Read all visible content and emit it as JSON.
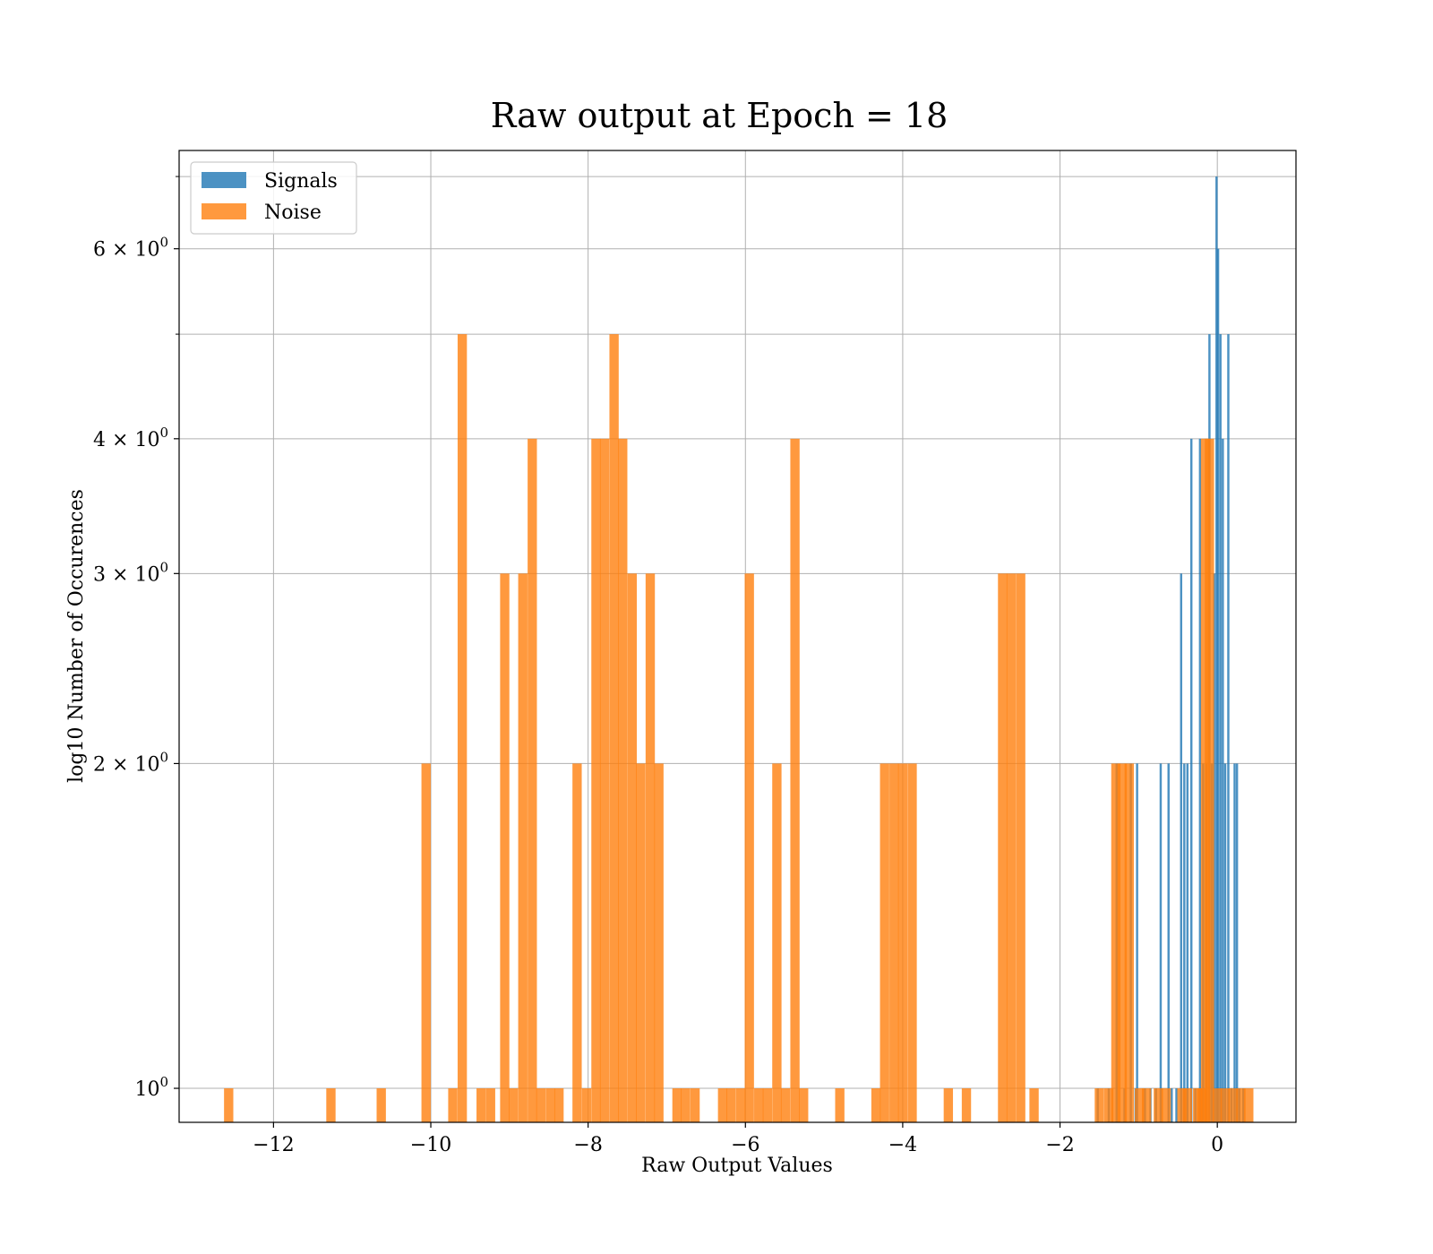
{
  "chart_data": {
    "type": "bar",
    "title": "Raw output at Epoch = 18",
    "xlabel": "Raw Output Values",
    "ylabel": "log10 Number of Occurences",
    "yscale": "log",
    "xlim": [
      -13.2,
      1.0
    ],
    "ylim": [
      0.93,
      7.4
    ],
    "xticks": [
      {
        "value": -12,
        "label": "−12"
      },
      {
        "value": -10,
        "label": "−10"
      },
      {
        "value": -8,
        "label": "−8"
      },
      {
        "value": -6,
        "label": "−6"
      },
      {
        "value": -4,
        "label": "−4"
      },
      {
        "value": -2,
        "label": "−2"
      },
      {
        "value": 0,
        "label": "0"
      }
    ],
    "yticks": [
      {
        "value": 1,
        "base": "10",
        "exp": "0"
      },
      {
        "value": 2,
        "base": "2 × 10",
        "exp": "0"
      },
      {
        "value": 3,
        "base": "3 × 10",
        "exp": "0"
      },
      {
        "value": 4,
        "base": "4 × 10",
        "exp": "0"
      },
      {
        "value": 6,
        "base": "6 × 10",
        "exp": "0"
      }
    ],
    "yminor": [
      5,
      7
    ],
    "grid": true,
    "legend_position": "top-left",
    "series": [
      {
        "name": "Signals",
        "color": "#1f77b4",
        "bin_width": 0.028,
        "x": [
          -1.52,
          -1.38,
          -1.28,
          -1.18,
          -1.1,
          -1.04,
          -1.02,
          -0.92,
          -0.85,
          -0.78,
          -0.72,
          -0.62,
          -0.58,
          -0.52,
          -0.46,
          -0.42,
          -0.38,
          -0.33,
          -0.28,
          -0.22,
          -0.18,
          -0.14,
          -0.1,
          -0.07,
          -0.04,
          -0.01,
          0.01,
          0.04,
          0.07,
          0.1,
          0.14,
          0.18,
          0.22,
          0.25,
          0.28,
          0.33
        ],
        "values": [
          1,
          1,
          2,
          1,
          2,
          1,
          2,
          1,
          1,
          1,
          2,
          2,
          1,
          1,
          3,
          2,
          2,
          4,
          1,
          4,
          2,
          2,
          5,
          2,
          3,
          7,
          6,
          5,
          4,
          2,
          5,
          1,
          2,
          2,
          1,
          1
        ]
      },
      {
        "name": "Noise",
        "color": "#ff7f0e",
        "bin_width": 0.118,
        "x": [
          -12.57,
          -11.27,
          -10.63,
          -10.06,
          -9.72,
          -9.6,
          -9.36,
          -9.24,
          -9.06,
          -8.95,
          -8.83,
          -8.71,
          -8.6,
          -8.48,
          -8.37,
          -8.14,
          -8.02,
          -7.9,
          -7.79,
          -7.67,
          -7.56,
          -7.44,
          -7.33,
          -7.21,
          -7.1,
          -6.87,
          -6.76,
          -6.64,
          -6.29,
          -6.18,
          -6.06,
          -5.95,
          -5.83,
          -5.72,
          -5.6,
          -5.49,
          -5.37,
          -5.26,
          -4.8,
          -4.34,
          -4.23,
          -4.11,
          -4.0,
          -3.88,
          -3.42,
          -3.19,
          -2.73,
          -2.62,
          -2.5,
          -2.33,
          -1.5,
          -1.38,
          -1.29,
          -1.21,
          -1.12,
          -0.99,
          -0.9,
          -0.75,
          -0.65,
          -0.45,
          -0.38,
          -0.25,
          -0.2,
          -0.15,
          -0.1,
          0.0,
          0.1,
          0.2,
          0.3,
          0.4
        ],
        "values": [
          1,
          1,
          1,
          2,
          1,
          5,
          1,
          1,
          3,
          1,
          3,
          4,
          1,
          1,
          1,
          2,
          1,
          4,
          4,
          5,
          4,
          3,
          2,
          3,
          2,
          1,
          1,
          1,
          1,
          1,
          1,
          3,
          1,
          1,
          2,
          1,
          4,
          1,
          1,
          1,
          2,
          2,
          2,
          2,
          1,
          1,
          3,
          3,
          3,
          1,
          1,
          1,
          2,
          2,
          2,
          1,
          1,
          1,
          1,
          1,
          1,
          1,
          1,
          4,
          4,
          1,
          1,
          1,
          1,
          1
        ]
      }
    ]
  }
}
